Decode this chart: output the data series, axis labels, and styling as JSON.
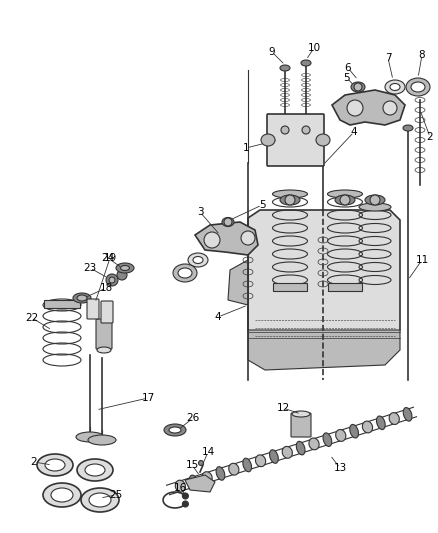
{
  "bg_color": "#ffffff",
  "line_color": "#333333",
  "gray_dark": "#555555",
  "gray_mid": "#888888",
  "gray_light": "#bbbbbb",
  "gray_fill": "#dddddd",
  "label_fs": 7.5,
  "title_fs": 7
}
